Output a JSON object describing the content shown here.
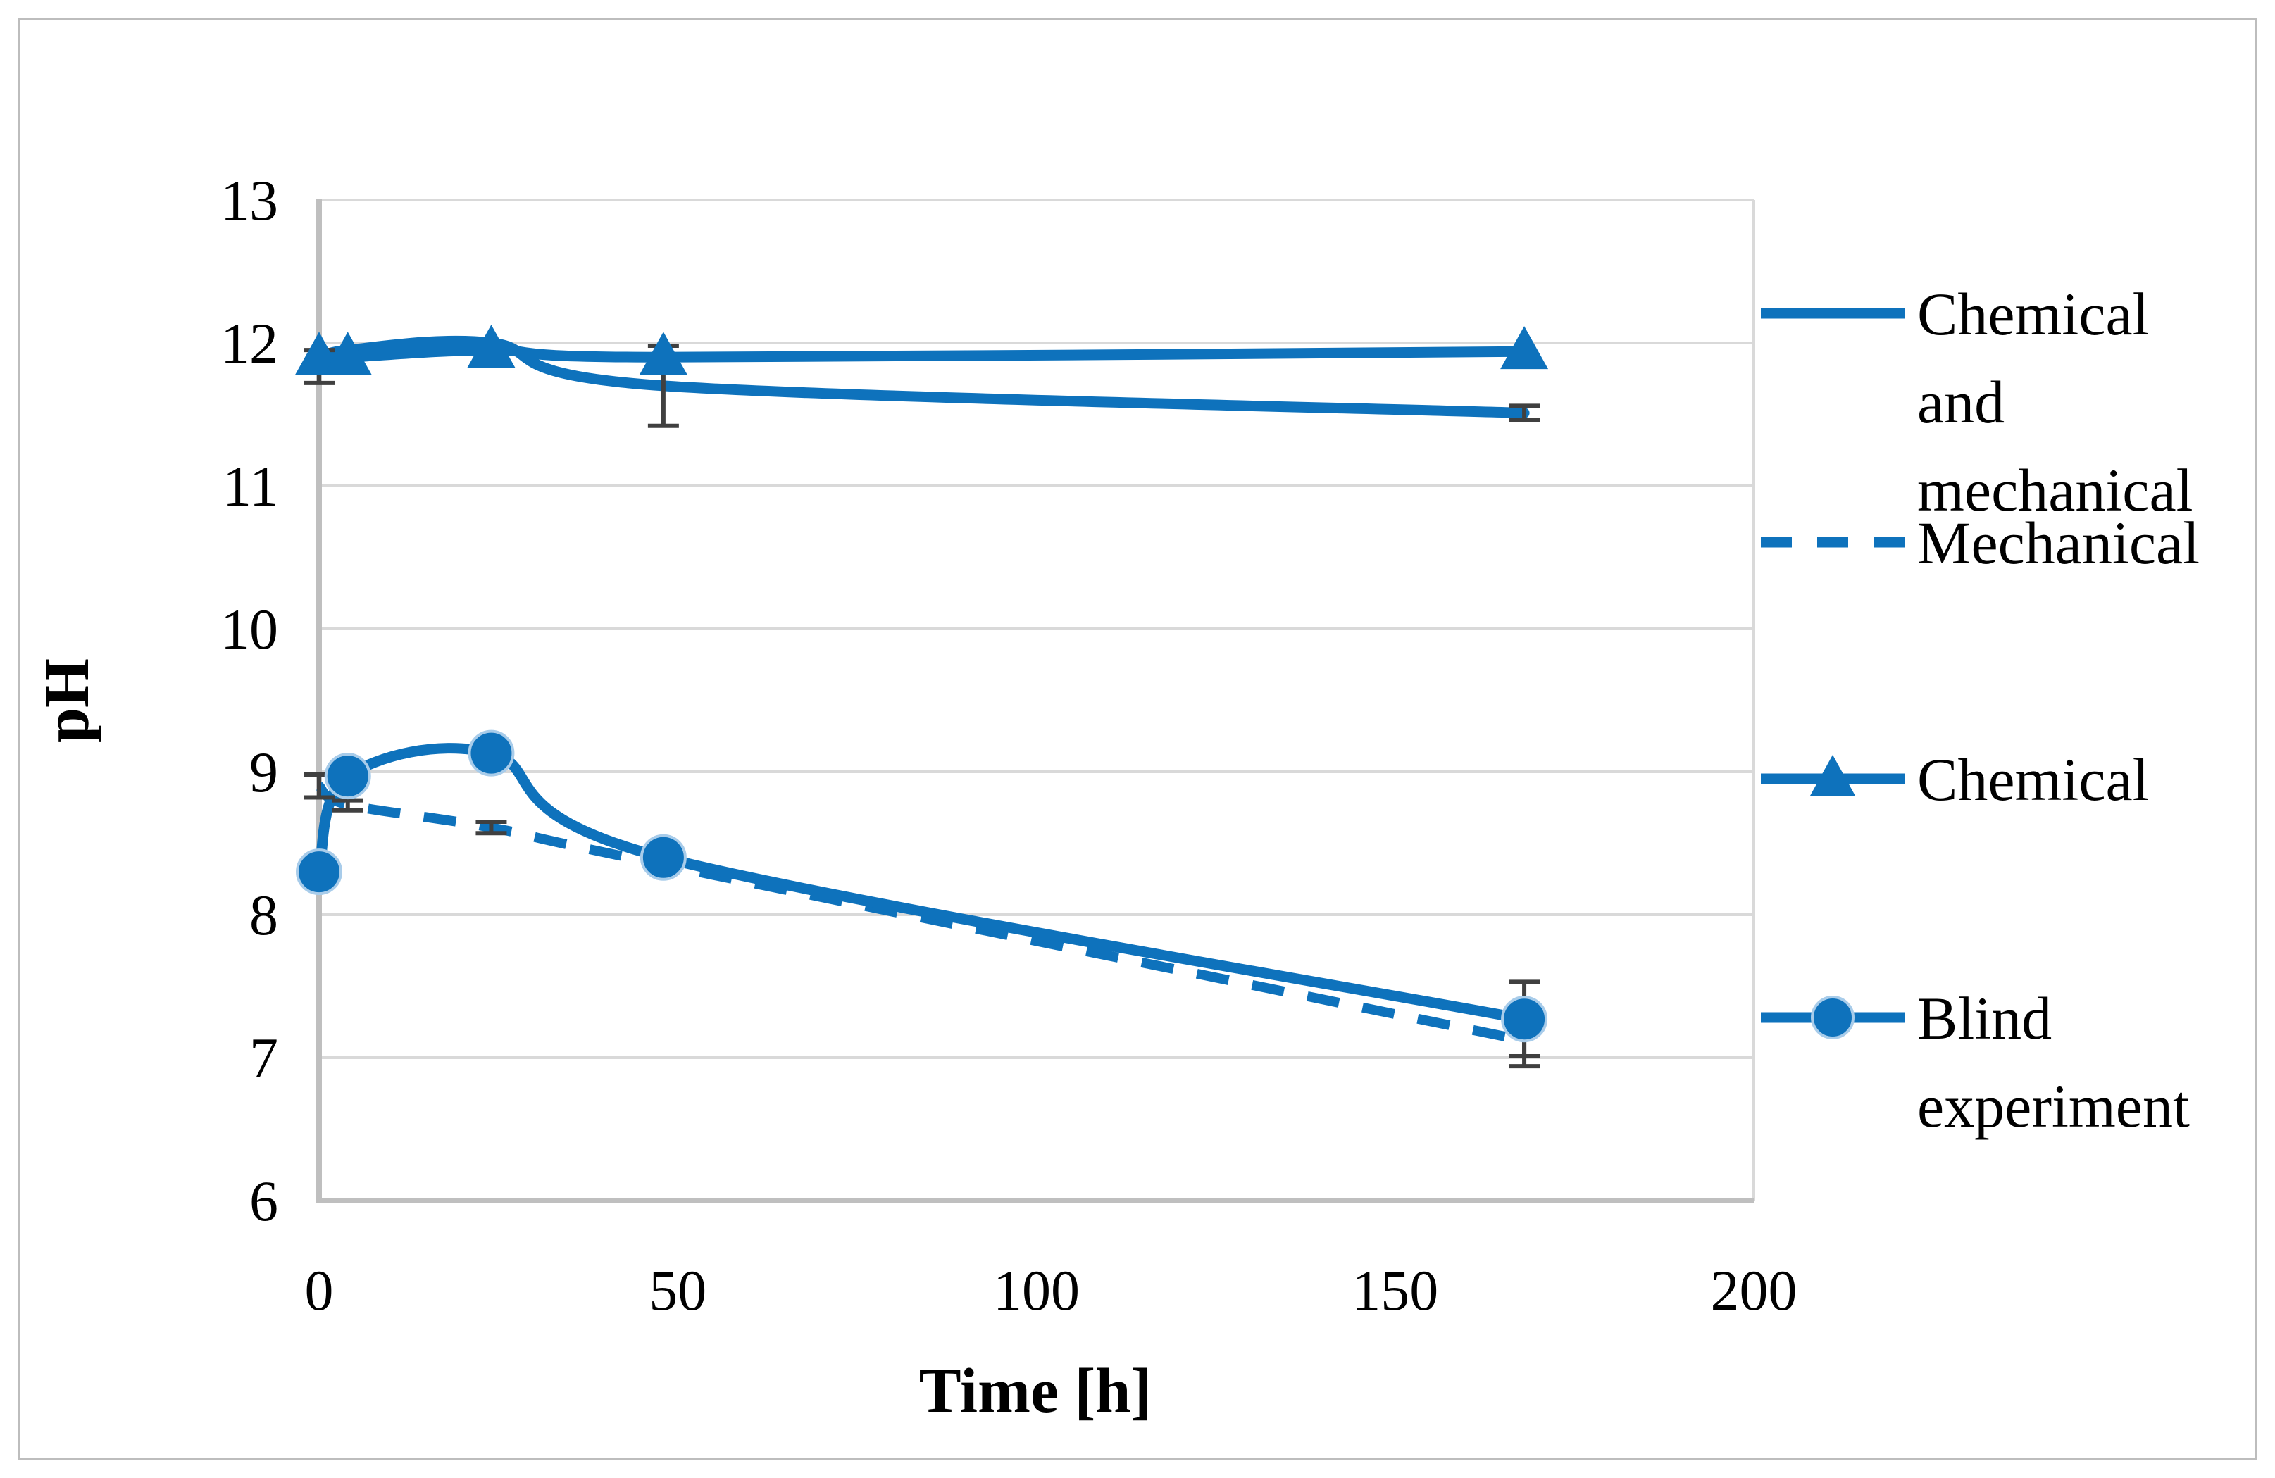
{
  "figure": {
    "background": "#FFFFFF",
    "border_color": "#BDBDBD"
  },
  "chart_data": {
    "type": "line",
    "title": "",
    "xlabel": "Time [h]",
    "ylabel": "pH",
    "xlim": [
      0,
      200
    ],
    "ylim": [
      6,
      13
    ],
    "x_ticks": [
      0,
      50,
      100,
      150,
      200
    ],
    "y_ticks": [
      6,
      7,
      8,
      9,
      10,
      11,
      12,
      13
    ],
    "grid": "horizontal-only",
    "legend_position": "right",
    "colors": {
      "line_blue": "#0E72BC",
      "marker_halo": "#A8CCEA",
      "gridline": "#D9D9D9",
      "axis_line": "#BFBFBF",
      "error_bar": "#404040",
      "text": "#000000"
    },
    "series": [
      {
        "name": "Chemical and mechanical",
        "style": "solid",
        "marker": "none",
        "x": [
          0,
          4,
          24,
          48,
          168
        ],
        "y": [
          11.88,
          11.95,
          12.0,
          11.7,
          11.51
        ],
        "error_bars": [
          {
            "x": 48,
            "y": 11.7,
            "plus": 0.28,
            "minus": 0.28
          },
          {
            "x": 168,
            "y": 11.51,
            "plus": 0.05,
            "minus": 0.05
          }
        ]
      },
      {
        "name": "Mechanical",
        "style": "dashed",
        "marker": "none",
        "x": [
          0,
          4,
          24,
          48,
          168
        ],
        "y": [
          8.9,
          8.77,
          8.61,
          8.35,
          7.12
        ],
        "error_bars": [
          {
            "x": 0,
            "y": 8.9,
            "plus": 0.08,
            "minus": 0.08
          },
          {
            "x": 4,
            "y": 8.77,
            "plus": 0.03,
            "minus": 0.04
          },
          {
            "x": 24,
            "y": 8.61,
            "plus": 0.04,
            "minus": 0.04
          },
          {
            "x": 168,
            "y": 7.12,
            "plus": 0.05,
            "minus": 0.18
          }
        ]
      },
      {
        "name": "Chemical",
        "style": "solid",
        "marker": "triangle",
        "x": [
          0,
          4,
          24,
          48,
          168
        ],
        "y": [
          11.9,
          11.9,
          11.95,
          11.9,
          11.94
        ],
        "error_bars": [
          {
            "x": 0,
            "y": 11.9,
            "plus": 0.05,
            "minus": 0.18
          }
        ]
      },
      {
        "name": "Blind experiment",
        "style": "solid",
        "marker": "circle",
        "x": [
          0,
          4,
          24,
          48,
          168
        ],
        "y": [
          8.3,
          8.97,
          9.13,
          8.4,
          7.27
        ],
        "error_bars": [
          {
            "x": 168,
            "y": 7.27,
            "plus": 0.26,
            "minus": 0.26
          }
        ]
      }
    ],
    "legend": {
      "entries": [
        {
          "label": "Chemical and mechanical",
          "label_lines": [
            "Chemical",
            "and",
            "mechanical"
          ],
          "style": "solid",
          "marker": "none"
        },
        {
          "label": "Mechanical",
          "label_lines": [
            "Mechanical"
          ],
          "style": "dashed",
          "marker": "none"
        },
        {
          "label": "Chemical",
          "label_lines": [
            "Chemical"
          ],
          "style": "solid",
          "marker": "triangle"
        },
        {
          "label": "Blind experiment",
          "label_lines": [
            "Blind",
            "experiment"
          ],
          "style": "solid",
          "marker": "circle"
        }
      ]
    }
  }
}
